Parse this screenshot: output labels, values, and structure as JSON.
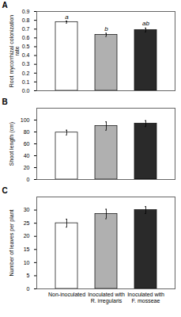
{
  "chart_data": [
    {
      "type": "bar",
      "title": "A",
      "ylabel": "Root mycorrhizal colonization\nrate",
      "categories": [
        "Non-inoculated",
        "Inoculated with\nR. irregularis",
        "Inoculated with\nF. mosseae"
      ],
      "values": [
        0.78,
        0.635,
        0.69
      ],
      "errors": [
        0.012,
        0.018,
        0.022
      ],
      "annotations": [
        "a",
        "b",
        "ab"
      ],
      "colors": [
        "white",
        "#b0b0b0",
        "#2a2a2a"
      ],
      "ylim": [
        0,
        0.9
      ],
      "yticks": [
        {
          "value": 0,
          "label": "0.0"
        },
        0.1,
        0.2,
        0.3,
        0.4,
        0.5,
        0.6,
        0.7,
        0.8,
        0.9
      ],
      "grid": false,
      "tick_labels": "y"
    },
    {
      "type": "bar",
      "title": "B",
      "ylabel": "Shoot length (cm)",
      "categories": [
        "Non-inoculated",
        "Inoculated with\nR. irregularis",
        "Inoculated with\nF. mosseae"
      ],
      "values": [
        79,
        90,
        94
      ],
      "errors": [
        4,
        7,
        5
      ],
      "colors": [
        "white",
        "#b0b0b0",
        "#2a2a2a"
      ],
      "ylim": [
        0,
        120
      ],
      "yticks": [
        0,
        20,
        40,
        60,
        80,
        100
      ],
      "grid": false,
      "tick_labels": "y"
    },
    {
      "type": "bar",
      "title": "C",
      "ylabel": "Number of leaves per plant",
      "categories": [
        "Non-inoculated",
        "Inoculated with\nR. irregularis",
        "Inoculated with\nF. mosseae"
      ],
      "values": [
        25,
        28.5,
        30
      ],
      "errors": [
        1.5,
        1.8,
        1.3
      ],
      "colors": [
        "white",
        "#b0b0b0",
        "#2a2a2a"
      ],
      "ylim": [
        0,
        35
      ],
      "yticks": [
        0,
        5,
        10,
        15,
        20,
        25,
        30
      ],
      "grid": false
    }
  ]
}
